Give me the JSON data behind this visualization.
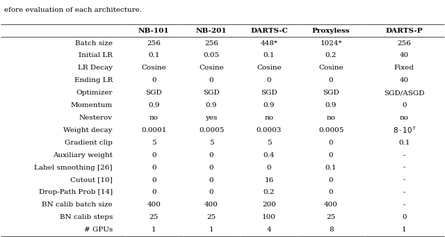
{
  "caption": "efore evaluation of each architecture.",
  "col_headers": [
    "",
    "NB-101",
    "NB-201",
    "DARTS-C",
    "Proxyless",
    "DARTS-P"
  ],
  "rows": [
    [
      "Batch size",
      "256",
      "256",
      "448*",
      "1024*",
      "256"
    ],
    [
      "Initial LR",
      "0.1",
      "0.05",
      "0.1",
      "0.2",
      "40"
    ],
    [
      "LR Decay",
      "Cosine",
      "Cosine",
      "Cosine",
      "Cosine",
      "Fixed"
    ],
    [
      "Ending LR",
      "0",
      "0",
      "0",
      "0",
      "40"
    ],
    [
      "Optimizer",
      "SGD",
      "SGD",
      "SGD",
      "SGD",
      "SGD/ASGD"
    ],
    [
      "Momentum",
      "0.9",
      "0.9",
      "0.9",
      "0.9",
      "0"
    ],
    [
      "Nesterov",
      "no",
      "yes",
      "no",
      "no",
      "no"
    ],
    [
      "Weight decay",
      "0.0001",
      "0.0005",
      "0.0003",
      "0.0005",
      "8·10⁷"
    ],
    [
      "Gradient clip",
      "5",
      "5",
      "5",
      "0",
      "0.1"
    ],
    [
      "Auxiliary weight",
      "0",
      "0",
      "0.4",
      "0",
      "-"
    ],
    [
      "Label smoothing [26]",
      "0",
      "0",
      "0",
      "0.1",
      "-"
    ],
    [
      "Cutout [10]",
      "0",
      "0",
      "16",
      "0",
      "-"
    ],
    [
      "Drop-Path Prob [14]",
      "0",
      "0",
      "0.2",
      "0",
      "-"
    ],
    [
      "BN calib batch size",
      "400",
      "400",
      "200",
      "400",
      "-"
    ],
    [
      "BN calib steps",
      "25",
      "25",
      "100",
      "25",
      "0"
    ],
    [
      "# GPUs",
      "1",
      "1",
      "4",
      "8",
      "1"
    ]
  ],
  "fig_width": 6.4,
  "fig_height": 3.41,
  "dpi": 100
}
